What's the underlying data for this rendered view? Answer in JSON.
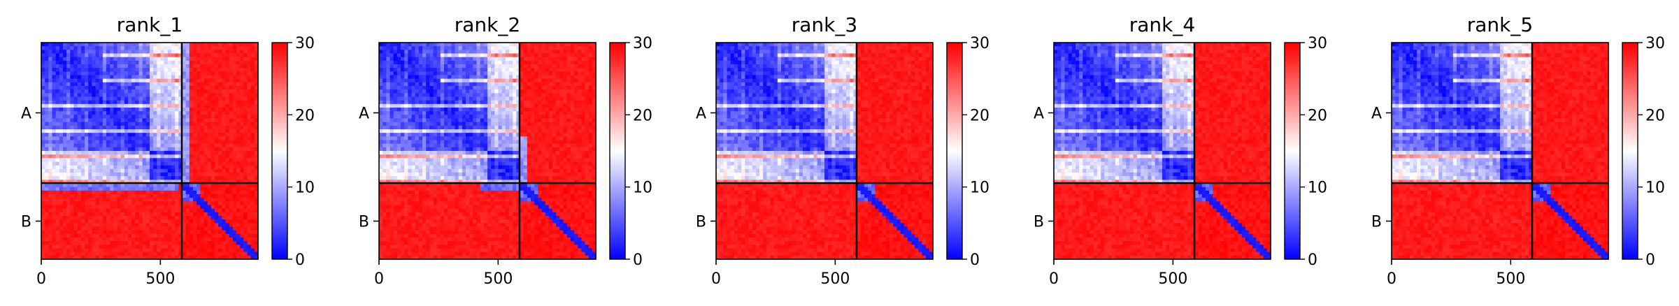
{
  "figure": {
    "panels": [
      {
        "title": "rank_1"
      },
      {
        "title": "rank_2"
      },
      {
        "title": "rank_3"
      },
      {
        "title": "rank_4"
      },
      {
        "title": "rank_5"
      }
    ],
    "colors": {
      "low": "#0000ff",
      "mid": "#ffffff",
      "high": "#ff0000",
      "divider": "#000000"
    }
  },
  "chart_data": [
    {
      "type": "heatmap",
      "title": "rank_1",
      "xlim": [
        0,
        910
      ],
      "x_ticks": [
        0,
        500
      ],
      "y_tick_labels": [
        "A",
        "B"
      ],
      "chain_boundary": 590,
      "colorbar": {
        "min": 0,
        "max": 30,
        "ticks": [
          0,
          10,
          20,
          30
        ],
        "colormap": "bwr"
      },
      "blocks": [
        {
          "rows": "A",
          "cols": "A",
          "level": "mostly low (~0-10)"
        },
        {
          "rows": "A",
          "cols": "B",
          "level": "high (30) with low band near B start"
        },
        {
          "rows": "B",
          "cols": "A",
          "level": "low band (~5-10) at top of B, otherwise high"
        },
        {
          "rows": "B",
          "cols": "B",
          "level": "high with low diagonal"
        }
      ]
    },
    {
      "type": "heatmap",
      "title": "rank_2",
      "xlim": [
        0,
        910
      ],
      "x_ticks": [
        0,
        500
      ],
      "y_tick_labels": [
        "A",
        "B"
      ],
      "chain_boundary": 590,
      "colorbar": {
        "min": 0,
        "max": 30,
        "ticks": [
          0,
          10,
          20,
          30
        ],
        "colormap": "bwr"
      },
      "blocks": [
        {
          "rows": "A",
          "cols": "A",
          "level": "mostly low (~0-10)"
        },
        {
          "rows": "A",
          "cols": "B",
          "level": "high (30) with low band near B start"
        },
        {
          "rows": "B",
          "cols": "A",
          "level": "low band (~5-10) over second half of A"
        },
        {
          "rows": "B",
          "cols": "B",
          "level": "high with low diagonal"
        }
      ]
    },
    {
      "type": "heatmap",
      "title": "rank_3",
      "xlim": [
        0,
        910
      ],
      "x_ticks": [
        0,
        500
      ],
      "y_tick_labels": [
        "A",
        "B"
      ],
      "chain_boundary": 590,
      "colorbar": {
        "min": 0,
        "max": 30,
        "ticks": [
          0,
          10,
          20,
          30
        ],
        "colormap": "bwr"
      },
      "blocks": [
        {
          "rows": "A",
          "cols": "A",
          "level": "mostly low (~0-10)"
        },
        {
          "rows": "A",
          "cols": "B",
          "level": "high (30)"
        },
        {
          "rows": "B",
          "cols": "A",
          "level": "high (30)"
        },
        {
          "rows": "B",
          "cols": "B",
          "level": "high with low diagonal"
        }
      ]
    },
    {
      "type": "heatmap",
      "title": "rank_4",
      "xlim": [
        0,
        910
      ],
      "x_ticks": [
        0,
        500
      ],
      "y_tick_labels": [
        "A",
        "B"
      ],
      "chain_boundary": 590,
      "colorbar": {
        "min": 0,
        "max": 30,
        "ticks": [
          0,
          10,
          20,
          30
        ],
        "colormap": "bwr"
      },
      "blocks": [
        {
          "rows": "A",
          "cols": "A",
          "level": "mostly low (~0-10)"
        },
        {
          "rows": "A",
          "cols": "B",
          "level": "high (30)"
        },
        {
          "rows": "B",
          "cols": "A",
          "level": "high (30)"
        },
        {
          "rows": "B",
          "cols": "B",
          "level": "high with low diagonal"
        }
      ]
    },
    {
      "type": "heatmap",
      "title": "rank_5",
      "xlim": [
        0,
        910
      ],
      "x_ticks": [
        0,
        500
      ],
      "y_tick_labels": [
        "A",
        "B"
      ],
      "chain_boundary": 590,
      "colorbar": {
        "min": 0,
        "max": 30,
        "ticks": [
          0,
          10,
          20,
          30
        ],
        "colormap": "bwr"
      },
      "blocks": [
        {
          "rows": "A",
          "cols": "A",
          "level": "mostly low (~0-10)"
        },
        {
          "rows": "A",
          "cols": "B",
          "level": "high (30)"
        },
        {
          "rows": "B",
          "cols": "A",
          "level": "high (30)"
        },
        {
          "rows": "B",
          "cols": "B",
          "level": "high with low diagonal"
        }
      ]
    }
  ]
}
